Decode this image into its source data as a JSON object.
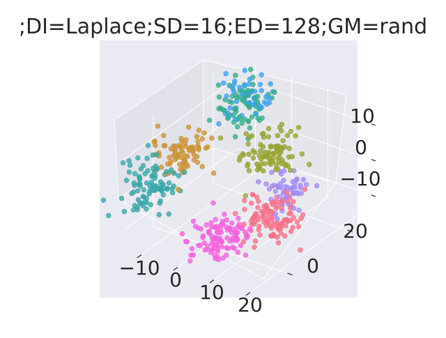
{
  "chart_data": {
    "type": "scatter",
    "title": ";DI=Laplace;SD=16;ED=128;GM=rand",
    "xlabel": "",
    "ylabel": "",
    "zlabel": "",
    "x_ticks": [
      "−10",
      "0",
      "10",
      "20"
    ],
    "y_ticks": [
      "0",
      "20"
    ],
    "z_ticks": [
      "10",
      "0",
      "−10"
    ],
    "xlim": [
      -15,
      22
    ],
    "ylim": [
      -10,
      28
    ],
    "zlim": [
      -15,
      16
    ],
    "grid": true,
    "projection": "3d",
    "clusters": [
      {
        "color": "#3ba3ec",
        "center": [
          -6,
          20,
          13
        ],
        "spread": [
          3.0,
          3.0,
          2.8
        ],
        "n": 50
      },
      {
        "color": "#36ad8a",
        "center": [
          -6,
          19,
          11
        ],
        "spread": [
          3.2,
          3.2,
          3.0
        ],
        "n": 70
      },
      {
        "color": "#97a431",
        "center": [
          6,
          14,
          4
        ],
        "spread": [
          3.0,
          3.0,
          2.8
        ],
        "n": 90
      },
      {
        "color": "#cc9436",
        "center": [
          -12,
          5,
          4
        ],
        "spread": [
          3.2,
          3.0,
          2.8
        ],
        "n": 80
      },
      {
        "color": "#38a7a8",
        "center": [
          -14,
          -2,
          -1
        ],
        "spread": [
          3.0,
          3.0,
          3.0
        ],
        "n": 95
      },
      {
        "color": "#a48cf4",
        "center": [
          12,
          12,
          -3
        ],
        "spread": [
          2.8,
          3.0,
          2.8
        ],
        "n": 55
      },
      {
        "color": "#f561dd",
        "center": [
          5,
          -2,
          -10
        ],
        "spread": [
          3.0,
          3.0,
          2.8
        ],
        "n": 100
      },
      {
        "color": "#f77189",
        "center": [
          11,
          8,
          -8
        ],
        "spread": [
          3.2,
          3.2,
          3.0
        ],
        "n": 110
      }
    ]
  }
}
